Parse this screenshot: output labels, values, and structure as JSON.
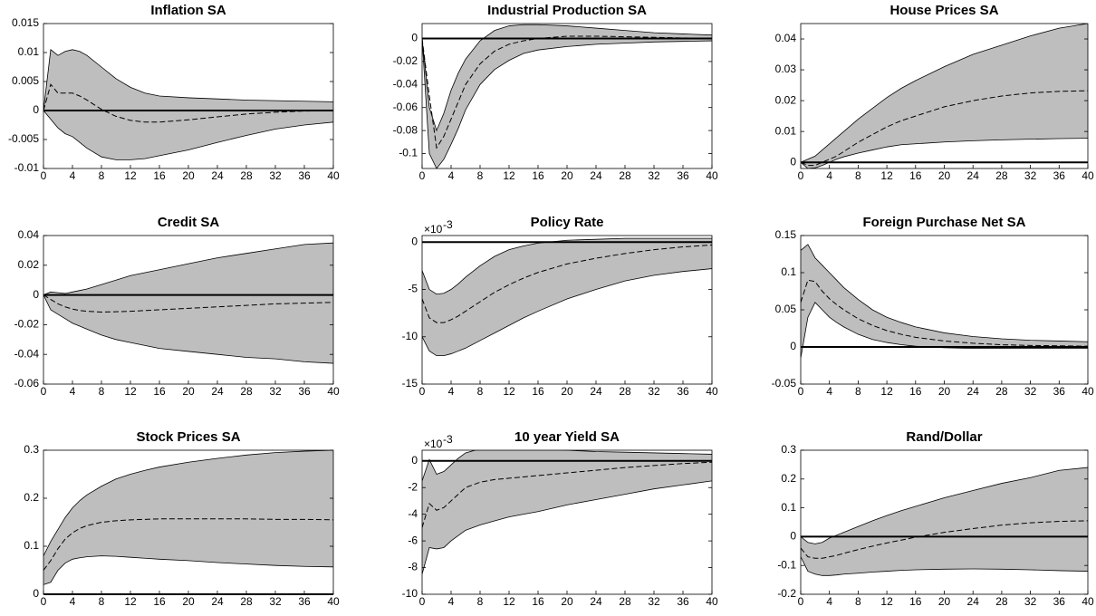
{
  "chart_data": [
    {
      "type": "band-line",
      "title": "Inflation SA",
      "x": [
        0,
        1,
        2,
        3,
        4,
        5,
        6,
        8,
        10,
        12,
        14,
        16,
        20,
        24,
        28,
        32,
        36,
        40
      ],
      "values": [
        0,
        0.0045,
        0.003,
        0.003,
        0.003,
        0.0025,
        0.0018,
        0.0002,
        -0.001,
        -0.0017,
        -0.002,
        -0.002,
        -0.0016,
        -0.0011,
        -0.0006,
        -0.0003,
        -0.0001,
        0
      ],
      "upper": [
        0,
        0.0105,
        0.0095,
        0.0102,
        0.0105,
        0.0102,
        0.0095,
        0.0075,
        0.0055,
        0.004,
        0.003,
        0.0025,
        0.0022,
        0.002,
        0.0018,
        0.0017,
        0.0016,
        0.0015
      ],
      "lower": [
        0,
        -0.0015,
        -0.003,
        -0.004,
        -0.0045,
        -0.0055,
        -0.0065,
        -0.008,
        -0.0085,
        -0.0085,
        -0.0083,
        -0.0078,
        -0.0068,
        -0.0055,
        -0.0043,
        -0.0032,
        -0.0025,
        -0.002
      ],
      "xlim": [
        0,
        40
      ],
      "xticks": [
        0,
        4,
        8,
        12,
        16,
        20,
        24,
        28,
        32,
        36,
        40
      ],
      "ylim": [
        -0.01,
        0.015
      ],
      "yticks": [
        -0.01,
        -0.005,
        0,
        0.005,
        0.01,
        0.015
      ],
      "band_color": "#bebebe",
      "line_color": "#000000",
      "zero_line": true
    },
    {
      "type": "band-line",
      "title": "Industrial Production SA",
      "x": [
        0,
        1,
        2,
        3,
        4,
        5,
        6,
        8,
        10,
        12,
        14,
        16,
        20,
        24,
        28,
        32,
        36,
        40
      ],
      "values": [
        0,
        -0.05,
        -0.095,
        -0.085,
        -0.07,
        -0.055,
        -0.04,
        -0.022,
        -0.011,
        -0.005,
        -0.002,
        0,
        0.002,
        0.002,
        0.0015,
        0.001,
        0.0005,
        0
      ],
      "upper": [
        0,
        -0.06,
        -0.08,
        -0.065,
        -0.045,
        -0.03,
        -0.018,
        -0.002,
        0.007,
        0.011,
        0.012,
        0.012,
        0.011,
        0.009,
        0.007,
        0.005,
        0.004,
        0.003
      ],
      "lower": [
        0,
        -0.1,
        -0.113,
        -0.105,
        -0.092,
        -0.078,
        -0.062,
        -0.04,
        -0.027,
        -0.019,
        -0.013,
        -0.01,
        -0.007,
        -0.005,
        -0.004,
        -0.003,
        -0.0025,
        -0.002
      ],
      "xlim": [
        0,
        40
      ],
      "xticks": [
        0,
        4,
        8,
        12,
        16,
        20,
        24,
        28,
        32,
        36,
        40
      ],
      "ylim": [
        -0.113,
        0.013
      ],
      "yticks": [
        -0.1,
        -0.08,
        -0.06,
        -0.04,
        -0.02,
        0
      ],
      "band_color": "#bebebe",
      "line_color": "#000000",
      "zero_line": true
    },
    {
      "type": "band-line",
      "title": "House Prices SA",
      "x": [
        0,
        1,
        2,
        3,
        4,
        5,
        6,
        8,
        10,
        12,
        14,
        16,
        20,
        24,
        28,
        32,
        36,
        40
      ],
      "values": [
        0,
        -0.001,
        -0.001,
        0,
        0.001,
        0.002,
        0.0035,
        0.0065,
        0.009,
        0.0115,
        0.0135,
        0.015,
        0.018,
        0.02,
        0.0215,
        0.0225,
        0.023,
        0.0232
      ],
      "upper": [
        0,
        0.001,
        0.002,
        0.004,
        0.006,
        0.008,
        0.01,
        0.014,
        0.0175,
        0.021,
        0.024,
        0.0265,
        0.031,
        0.035,
        0.038,
        0.041,
        0.0435,
        0.045
      ],
      "lower": [
        0,
        -0.002,
        -0.0018,
        -0.001,
        0,
        0.001,
        0.0018,
        0.003,
        0.004,
        0.005,
        0.0057,
        0.006,
        0.0066,
        0.007,
        0.0073,
        0.0075,
        0.0077,
        0.0078
      ],
      "xlim": [
        0,
        40
      ],
      "xticks": [
        0,
        4,
        8,
        12,
        16,
        20,
        24,
        28,
        32,
        36,
        40
      ],
      "ylim": [
        -0.002,
        0.045
      ],
      "yticks": [
        0,
        0.01,
        0.02,
        0.03,
        0.04
      ],
      "band_color": "#bebebe",
      "line_color": "#000000",
      "zero_line": true
    },
    {
      "type": "band-line",
      "title": "Credit SA",
      "x": [
        0,
        1,
        2,
        3,
        4,
        5,
        6,
        8,
        10,
        12,
        14,
        16,
        20,
        24,
        28,
        32,
        36,
        40
      ],
      "values": [
        0,
        -0.003,
        -0.006,
        -0.008,
        -0.0095,
        -0.0105,
        -0.011,
        -0.0115,
        -0.0113,
        -0.011,
        -0.0105,
        -0.01,
        -0.009,
        -0.008,
        -0.007,
        -0.006,
        -0.0055,
        -0.005
      ],
      "upper": [
        0,
        0.002,
        0.0015,
        0.001,
        0.002,
        0.003,
        0.004,
        0.007,
        0.01,
        0.013,
        0.015,
        0.017,
        0.021,
        0.025,
        0.028,
        0.031,
        0.034,
        0.035
      ],
      "lower": [
        0,
        -0.01,
        -0.013,
        -0.016,
        -0.019,
        -0.021,
        -0.023,
        -0.027,
        -0.03,
        -0.032,
        -0.034,
        -0.036,
        -0.038,
        -0.04,
        -0.042,
        -0.043,
        -0.045,
        -0.046
      ],
      "xlim": [
        0,
        40
      ],
      "xticks": [
        0,
        4,
        8,
        12,
        16,
        20,
        24,
        28,
        32,
        36,
        40
      ],
      "ylim": [
        -0.06,
        0.04
      ],
      "yticks": [
        -0.06,
        -0.04,
        -0.02,
        0,
        0.02,
        0.04
      ],
      "band_color": "#bebebe",
      "line_color": "#000000",
      "zero_line": true
    },
    {
      "type": "band-line",
      "title": "Policy Rate",
      "y_multiplier": {
        "base": "×10",
        "exponent": "-3"
      },
      "x": [
        0,
        1,
        2,
        3,
        4,
        5,
        6,
        8,
        10,
        12,
        14,
        16,
        20,
        24,
        28,
        32,
        36,
        40
      ],
      "values": [
        -6,
        -8,
        -8.5,
        -8.5,
        -8.2,
        -7.8,
        -7.3,
        -6.3,
        -5.3,
        -4.5,
        -3.8,
        -3.2,
        -2.3,
        -1.7,
        -1.2,
        -0.8,
        -0.5,
        -0.3
      ],
      "upper": [
        -3,
        -5,
        -5.5,
        -5.4,
        -5,
        -4.4,
        -3.7,
        -2.5,
        -1.5,
        -0.8,
        -0.4,
        -0.1,
        0.2,
        0.3,
        0.4,
        0.4,
        0.4,
        0.4
      ],
      "lower": [
        -10,
        -11.5,
        -12,
        -12,
        -11.8,
        -11.5,
        -11.2,
        -10.4,
        -9.6,
        -8.8,
        -8,
        -7.3,
        -6,
        -5,
        -4.1,
        -3.5,
        -3.1,
        -2.8
      ],
      "xlim": [
        0,
        40
      ],
      "xticks": [
        0,
        4,
        8,
        12,
        16,
        20,
        24,
        28,
        32,
        36,
        40
      ],
      "ylim": [
        -15,
        0.7
      ],
      "yticks": [
        -15,
        -10,
        -5,
        0
      ],
      "band_color": "#bebebe",
      "line_color": "#000000",
      "zero_line": true
    },
    {
      "type": "band-line",
      "title": "Foreign Purchase Net SA",
      "x": [
        0,
        1,
        2,
        3,
        4,
        5,
        6,
        8,
        10,
        12,
        14,
        16,
        20,
        24,
        28,
        32,
        36,
        40
      ],
      "values": [
        0.06,
        0.09,
        0.088,
        0.075,
        0.065,
        0.057,
        0.05,
        0.038,
        0.029,
        0.022,
        0.017,
        0.013,
        0.008,
        0.005,
        0.003,
        0.002,
        0.0015,
        0.001
      ],
      "upper": [
        0.13,
        0.138,
        0.12,
        0.11,
        0.1,
        0.09,
        0.08,
        0.064,
        0.05,
        0.04,
        0.033,
        0.027,
        0.019,
        0.014,
        0.011,
        0.009,
        0.008,
        0.007
      ],
      "lower": [
        -0.015,
        0.04,
        0.06,
        0.05,
        0.04,
        0.033,
        0.027,
        0.017,
        0.01,
        0.006,
        0.003,
        0.001,
        -0.001,
        -0.002,
        -0.002,
        -0.002,
        -0.002,
        -0.002
      ],
      "xlim": [
        0,
        40
      ],
      "xticks": [
        0,
        4,
        8,
        12,
        16,
        20,
        24,
        28,
        32,
        36,
        40
      ],
      "ylim": [
        -0.05,
        0.15
      ],
      "yticks": [
        -0.05,
        0,
        0.05,
        0.1,
        0.15
      ],
      "band_color": "#bebebe",
      "line_color": "#000000",
      "zero_line": true
    },
    {
      "type": "band-line",
      "title": "Stock Prices SA",
      "x": [
        0,
        1,
        2,
        3,
        4,
        5,
        6,
        8,
        10,
        12,
        14,
        16,
        20,
        24,
        28,
        32,
        36,
        40
      ],
      "values": [
        0.05,
        0.07,
        0.095,
        0.115,
        0.128,
        0.137,
        0.143,
        0.15,
        0.153,
        0.155,
        0.156,
        0.157,
        0.157,
        0.157,
        0.157,
        0.156,
        0.156,
        0.155
      ],
      "upper": [
        0.08,
        0.11,
        0.135,
        0.16,
        0.18,
        0.195,
        0.207,
        0.225,
        0.24,
        0.25,
        0.258,
        0.265,
        0.275,
        0.283,
        0.29,
        0.295,
        0.298,
        0.3
      ],
      "lower": [
        0.02,
        0.025,
        0.05,
        0.065,
        0.073,
        0.076,
        0.078,
        0.08,
        0.079,
        0.077,
        0.075,
        0.073,
        0.07,
        0.066,
        0.063,
        0.06,
        0.058,
        0.057
      ],
      "xlim": [
        0,
        40
      ],
      "xticks": [
        0,
        4,
        8,
        12,
        16,
        20,
        24,
        28,
        32,
        36,
        40
      ],
      "ylim": [
        0,
        0.3
      ],
      "yticks": [
        0,
        0.1,
        0.2,
        0.3
      ],
      "band_color": "#bebebe",
      "line_color": "#000000",
      "zero_line": true
    },
    {
      "type": "band-line",
      "title": "10 year Yield SA",
      "y_multiplier": {
        "base": "×10",
        "exponent": "-3"
      },
      "x": [
        0,
        1,
        2,
        3,
        4,
        5,
        6,
        8,
        10,
        12,
        14,
        16,
        20,
        24,
        28,
        32,
        36,
        40
      ],
      "values": [
        -5,
        -3.2,
        -3.7,
        -3.5,
        -3,
        -2.5,
        -2,
        -1.6,
        -1.4,
        -1.3,
        -1.2,
        -1.1,
        -0.9,
        -0.7,
        -0.5,
        -0.35,
        -0.2,
        -0.1
      ],
      "upper": [
        -1.5,
        0.1,
        -1,
        -0.8,
        -0.3,
        0.2,
        0.6,
        0.9,
        1,
        1,
        0.95,
        0.9,
        0.8,
        0.7,
        0.65,
        0.6,
        0.55,
        0.5
      ],
      "lower": [
        -8.5,
        -6.5,
        -6.6,
        -6.5,
        -6,
        -5.6,
        -5.2,
        -4.8,
        -4.5,
        -4.2,
        -4,
        -3.8,
        -3.3,
        -2.9,
        -2.5,
        -2.1,
        -1.8,
        -1.5
      ],
      "xlim": [
        0,
        40
      ],
      "xticks": [
        0,
        4,
        8,
        12,
        16,
        20,
        24,
        28,
        32,
        36,
        40
      ],
      "ylim": [
        -10,
        0.8
      ],
      "yticks": [
        -10,
        -8,
        -6,
        -4,
        -2,
        0
      ],
      "band_color": "#bebebe",
      "line_color": "#000000",
      "zero_line": true
    },
    {
      "type": "band-line",
      "title": "Rand/Dollar",
      "x": [
        0,
        1,
        2,
        3,
        4,
        5,
        6,
        8,
        10,
        12,
        14,
        16,
        20,
        24,
        28,
        32,
        36,
        40
      ],
      "values": [
        -0.04,
        -0.07,
        -0.075,
        -0.075,
        -0.07,
        -0.065,
        -0.058,
        -0.045,
        -0.033,
        -0.022,
        -0.012,
        -0.002,
        0.015,
        0.028,
        0.04,
        0.048,
        0.053,
        0.055
      ],
      "upper": [
        0,
        -0.02,
        -0.025,
        -0.02,
        -0.005,
        0.005,
        0.015,
        0.035,
        0.055,
        0.073,
        0.09,
        0.105,
        0.135,
        0.16,
        0.185,
        0.205,
        0.23,
        0.24
      ],
      "lower": [
        -0.07,
        -0.12,
        -0.13,
        -0.135,
        -0.135,
        -0.133,
        -0.13,
        -0.127,
        -0.123,
        -0.12,
        -0.117,
        -0.115,
        -0.113,
        -0.112,
        -0.113,
        -0.115,
        -0.118,
        -0.12
      ],
      "xlim": [
        0,
        40
      ],
      "xticks": [
        0,
        4,
        8,
        12,
        16,
        20,
        24,
        28,
        32,
        36,
        40
      ],
      "ylim": [
        -0.2,
        0.3
      ],
      "yticks": [
        -0.2,
        -0.1,
        0,
        0.1,
        0.2,
        0.3
      ],
      "band_color": "#bebebe",
      "line_color": "#000000",
      "zero_line": true
    }
  ]
}
